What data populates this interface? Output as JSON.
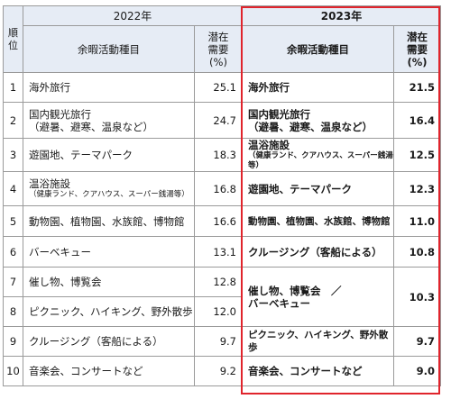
{
  "header": {
    "rank_label": "順位",
    "year_2022": "2022年",
    "year_2023": "2023年",
    "activity_label": "余暇活動種目",
    "demand_label_l1": "潜在",
    "demand_label_l2": "需要",
    "demand_label_l3": "(%)"
  },
  "rows_2022": [
    {
      "rank": "1",
      "activity": "海外旅行",
      "sub": "",
      "value": "25.1"
    },
    {
      "rank": "2",
      "activity": "国内観光旅行",
      "sub": "（避暑、避寒、温泉など）",
      "value": "24.7"
    },
    {
      "rank": "3",
      "activity": "遊園地、テーマパーク",
      "sub": "",
      "value": "18.3"
    },
    {
      "rank": "4",
      "activity": "温浴施設",
      "sub": "（健康ランド、クアハウス、スーパー銭湯等）",
      "value": "16.8"
    },
    {
      "rank": "5",
      "activity": "動物園、植物園、水族館、博物館",
      "sub": "",
      "value": "16.6"
    },
    {
      "rank": "6",
      "activity": "バーベキュー",
      "sub": "",
      "value": "13.1"
    },
    {
      "rank": "7",
      "activity": "催し物、博覧会",
      "sub": "",
      "value": "12.8"
    },
    {
      "rank": "8",
      "activity": "ピクニック、ハイキング、野外散歩",
      "sub": "",
      "value": "12.0"
    },
    {
      "rank": "9",
      "activity": "クルージング（客船による）",
      "sub": "",
      "value": "9.7"
    },
    {
      "rank": "10",
      "activity": "音楽会、コンサートなど",
      "sub": "",
      "value": "9.2"
    }
  ],
  "rows_2023": [
    {
      "activity": "海外旅行",
      "sub": "",
      "value": "21.5"
    },
    {
      "activity": "国内観光旅行",
      "sub": "（避暑、避寒、温泉など）",
      "value": "16.4"
    },
    {
      "activity": "温浴施設",
      "sub": "（健康ランド、クアハウス、スーパー銭湯等）",
      "value": "12.5"
    },
    {
      "activity": "遊園地、テーマパーク",
      "sub": "",
      "value": "12.3"
    },
    {
      "activity": "動物園、植物園、水族館、博物館",
      "sub": "",
      "value": "11.0"
    },
    {
      "activity": "クルージング（客船による）",
      "sub": "",
      "value": "10.8"
    },
    {
      "activity": "催し物、博覧会　／",
      "sub": "バーベキュー",
      "value": "10.3"
    },
    {
      "activity": "ピクニック、ハイキング、野外散歩",
      "sub": "",
      "value": "9.7"
    },
    {
      "activity": "音楽会、コンサートなど",
      "sub": "",
      "value": "9.0"
    }
  ],
  "colors": {
    "highlight_border": "#e0242c",
    "header_bg": "#e6ecf5",
    "grid": "#9a9a9a"
  }
}
